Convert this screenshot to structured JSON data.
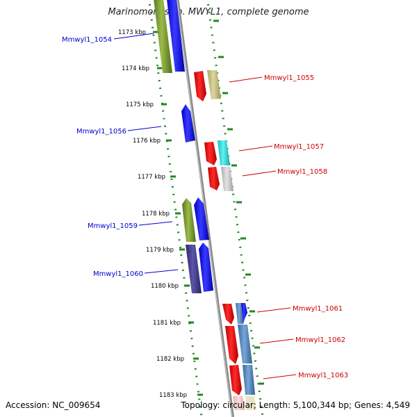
{
  "title": "Marinomonas sp. MWYL1, complete genome",
  "footer": {
    "accession": "Accession: NC_009654",
    "topology": "Topology: circular; Length: 5,100,344 bp; Genes: 4,549"
  },
  "colors": {
    "left_label": "#0000cc",
    "right_label": "#cc0000",
    "backbone": "#888888",
    "tick": "#228822"
  },
  "ticks": [
    "1173 kbp",
    "1174 kbp",
    "1175 kbp",
    "1176 kbp",
    "1177 kbp",
    "1178 kbp",
    "1179 kbp",
    "1180 kbp",
    "1181 kbp",
    "1182 kbp",
    "1183 kbp"
  ],
  "genes_left": [
    {
      "label": "Mmwyl1_1054"
    },
    {
      "label": "Mmwyl1_1056"
    },
    {
      "label": "Mmwyl1_1059"
    },
    {
      "label": "Mmwyl1_1060"
    }
  ],
  "genes_right": [
    {
      "label": "Mmwyl1_1055"
    },
    {
      "label": "Mmwyl1_1057"
    },
    {
      "label": "Mmwyl1_1058"
    },
    {
      "label": "Mmwyl1_1061"
    },
    {
      "label": "Mmwyl1_1062"
    },
    {
      "label": "Mmwyl1_1063"
    }
  ]
}
